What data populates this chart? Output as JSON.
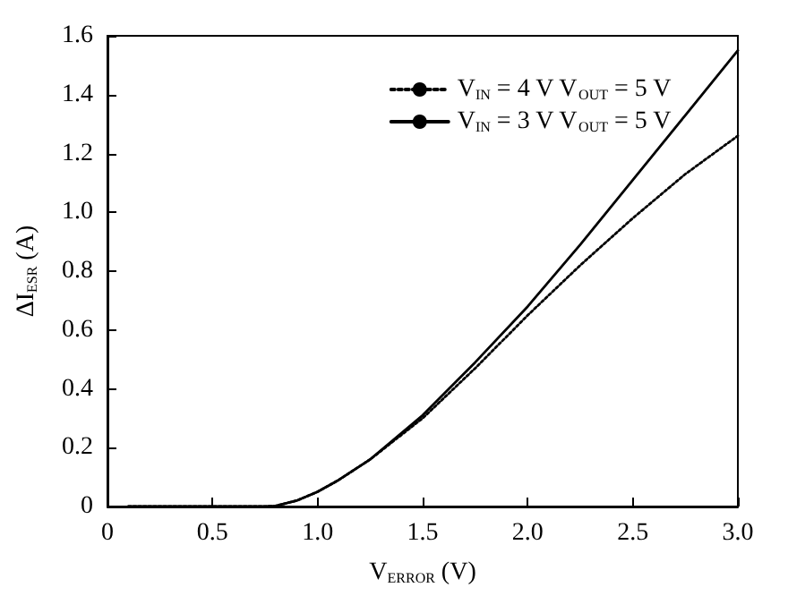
{
  "chart_data": {
    "type": "line",
    "xlabel": "V$_{ERROR}$ (V)",
    "ylabel": "ΔI$_{ESR}$ (A)",
    "xlim": [
      0,
      3
    ],
    "xticks": [
      0,
      0.5,
      {
        "value": 1,
        "label": "1.0"
      },
      1.5,
      {
        "value": 2,
        "label": "2.0"
      },
      2.5,
      {
        "value": 3,
        "label": "3.0"
      }
    ],
    "ylim": [
      0,
      1.6
    ],
    "yticks": [
      0,
      0.2,
      0.4,
      0.6,
      0.8,
      {
        "value": 1,
        "label": "1.0"
      },
      1.2,
      1.4,
      1.6
    ],
    "grid": false,
    "legend": "top right",
    "marker": "none",
    "series": [
      {
        "name": "V$_{IN}$ = 4 V V$_{OUT}$ = 5 V",
        "color": "#000000",
        "line_style": "dotted",
        "x": [
          0.1,
          0.5,
          0.75,
          0.8,
          0.9,
          1.0,
          1.1,
          1.25,
          1.5,
          1.75,
          2.0,
          2.25,
          2.5,
          2.75,
          3.0
        ],
        "values": [
          0,
          0,
          0,
          0.002,
          0.02,
          0.05,
          0.09,
          0.16,
          0.3,
          0.47,
          0.65,
          0.82,
          0.98,
          1.13,
          1.26
        ]
      },
      {
        "name": "V$_{IN}$ = 3 V V$_{OUT}$ = 5 V",
        "color": "#000000",
        "line_style": "solid",
        "x": [
          0.1,
          0.5,
          0.75,
          0.8,
          0.9,
          1.0,
          1.1,
          1.25,
          1.5,
          1.75,
          2.0,
          2.25,
          2.5,
          2.75,
          3.0
        ],
        "values": [
          0,
          0,
          0,
          0.002,
          0.02,
          0.05,
          0.09,
          0.16,
          0.31,
          0.49,
          0.68,
          0.89,
          1.11,
          1.33,
          1.55
        ]
      }
    ]
  }
}
